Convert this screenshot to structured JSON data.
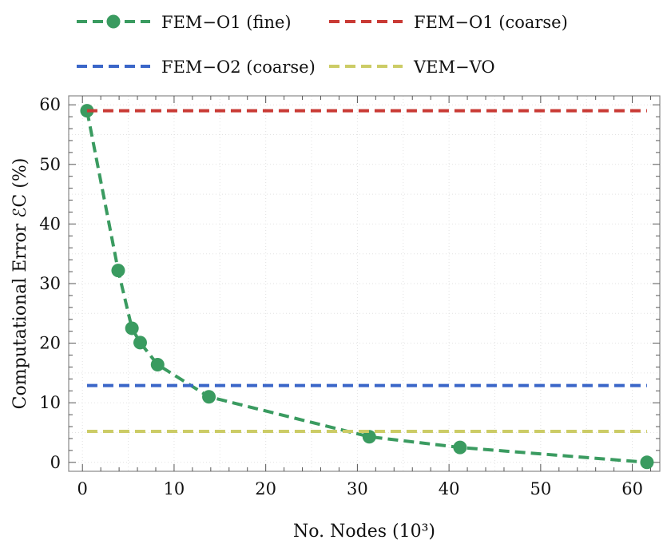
{
  "chart_data": {
    "type": "line",
    "xlabel": "No. Nodes (10³)",
    "ylabel": "Computational Error ℰC (%)",
    "xlim": [
      -1.5,
      63
    ],
    "ylim": [
      -1.5,
      61.5
    ],
    "xticks": [
      0,
      10,
      20,
      30,
      40,
      50,
      60
    ],
    "yticks": [
      0,
      10,
      20,
      30,
      40,
      50,
      60
    ],
    "grid": true,
    "legend_position": "top",
    "series": [
      {
        "name": "FEM−O1 (fine)",
        "color": "#3a9b60",
        "style": "dashed-markers",
        "x": [
          0.5,
          3.9,
          5.4,
          6.3,
          8.2,
          13.8,
          31.3,
          41.2,
          61.6
        ],
        "y": [
          59.0,
          32.2,
          22.5,
          20.1,
          16.4,
          11.0,
          4.3,
          2.5,
          0.0
        ]
      },
      {
        "name": "FEM−O1 (coarse)",
        "color": "#c93a35",
        "style": "dashed",
        "x": [
          0.5,
          61.6
        ],
        "y": [
          59.0,
          59.0
        ]
      },
      {
        "name": "FEM−O2 (coarse)",
        "color": "#3a66c8",
        "style": "dashed",
        "x": [
          0.5,
          61.6
        ],
        "y": [
          12.9,
          12.9
        ]
      },
      {
        "name": "VEM−VO",
        "color": "#cccc66",
        "style": "dashed",
        "x": [
          0.5,
          61.6
        ],
        "y": [
          5.2,
          5.2
        ]
      }
    ]
  }
}
